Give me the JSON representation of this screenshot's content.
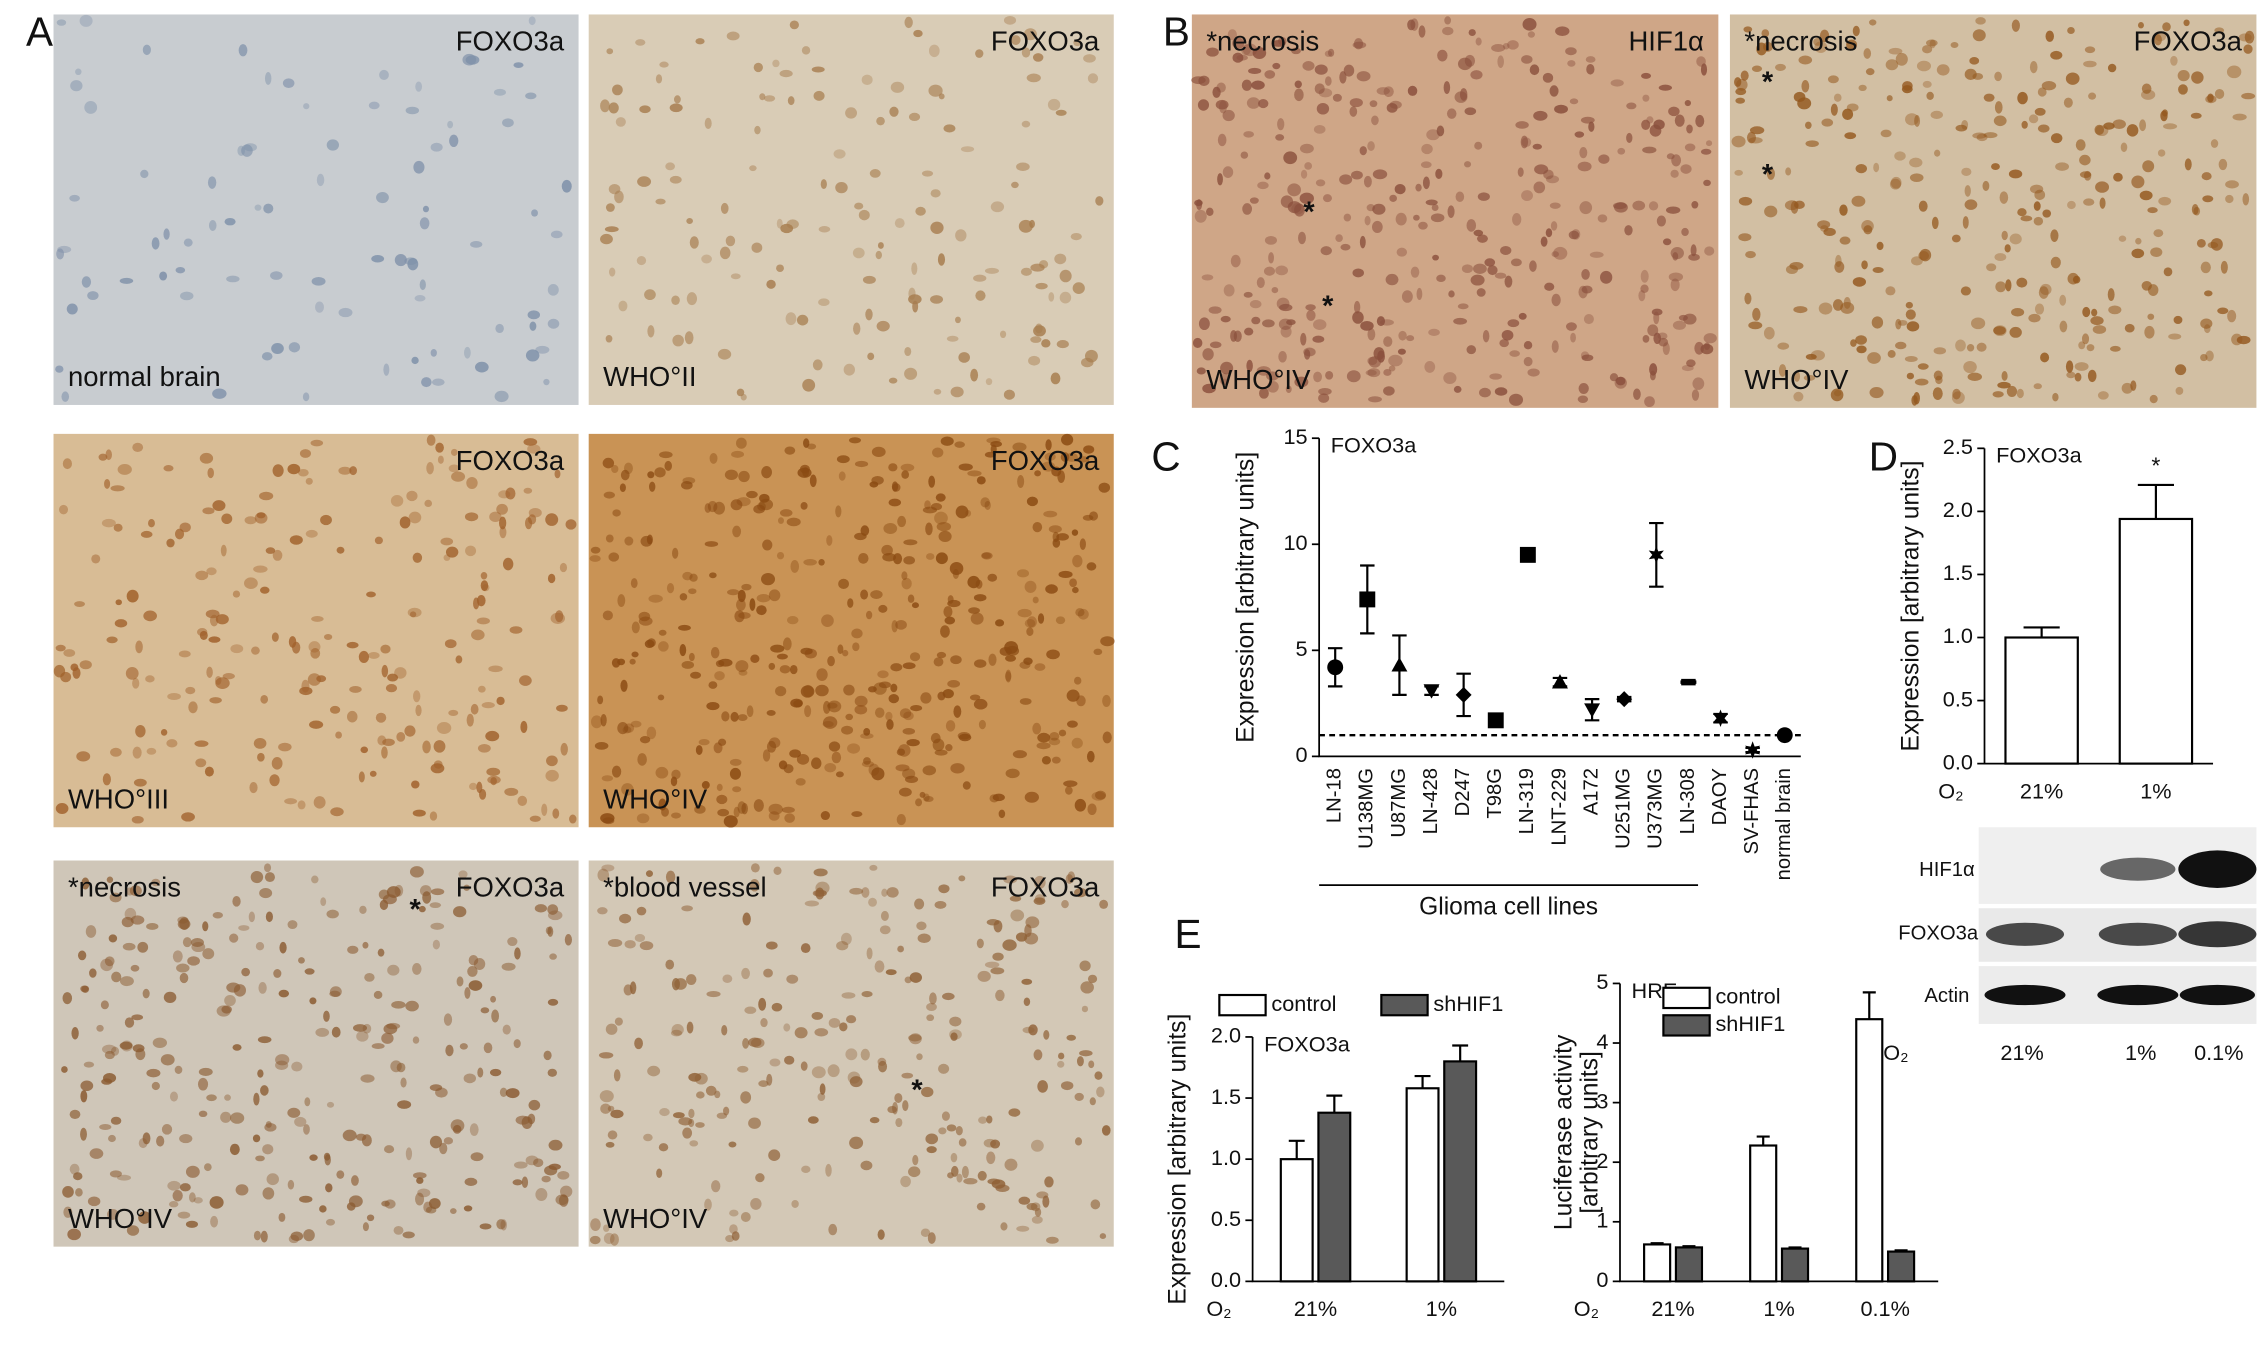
{
  "panel_labels": [
    "A",
    "B",
    "C",
    "D",
    "E"
  ],
  "micrographs": [
    {
      "top_right": "FOXO3a",
      "bottom_left": "normal brain",
      "color": "#c8ccd0",
      "nuclei_color": "#7d8fa8"
    },
    {
      "top_right": "FOXO3a",
      "bottom_left": "WHO°II",
      "color": "#d9ccb6",
      "nuclei_color": "#a77d4f"
    },
    {
      "top_right": "FOXO3a",
      "bottom_left": "WHO°III",
      "color": "#d8bc95",
      "nuclei_color": "#a0602a"
    },
    {
      "top_right": "FOXO3a",
      "bottom_left": "WHO°IV",
      "color": "#c99355",
      "nuclei_color": "#8a4a12"
    },
    {
      "top_left": "*necrosis",
      "top_right": "FOXO3a",
      "bottom_left": "WHO°IV",
      "markers": [
        "*"
      ],
      "color": "#cfc6b8",
      "nuclei_color": "#8a5a30"
    },
    {
      "top_left": "*blood vessel",
      "top_right": "FOXO3a",
      "bottom_left": "WHO°IV",
      "markers": [
        "*"
      ],
      "color": "#d3c8b6",
      "nuclei_color": "#8f6035"
    },
    {
      "top_left": "*necrosis",
      "top_right": "HIF1α",
      "bottom_left": "WHO°IV",
      "markers": [
        "*",
        "*"
      ],
      "color": "#cfa687",
      "nuclei_color": "#8a4f3c"
    },
    {
      "top_left": "*necrosis",
      "top_right": "FOXO3a",
      "bottom_left": "WHO°IV",
      "markers": [
        "*",
        "*"
      ],
      "color": "#d2bfa3",
      "nuclei_color": "#94581e"
    }
  ],
  "blot": {
    "rows": [
      "HIF1α",
      "FOXO3a",
      "Actin"
    ],
    "x_prefix": "O₂",
    "lanes": [
      "21%",
      "1%",
      "0.1%"
    ]
  },
  "chart_data": [
    {
      "type": "dot",
      "title": "FOXO3a",
      "y_label": "Expression [arbitrary units]",
      "group_label": "Glioma cell lines",
      "categories": [
        "LN-18",
        "U138MG",
        "U87MG",
        "LN-428",
        "D247",
        "T98G",
        "LN-319",
        "LNT-229",
        "A172",
        "U251MG",
        "U373MG",
        "LN-308",
        "DAOY",
        "SV-FHAS",
        "normal brain"
      ],
      "values": [
        4.2,
        7.4,
        4.3,
        3.1,
        2.9,
        1.7,
        9.5,
        3.5,
        2.2,
        2.7,
        9.5,
        3.5,
        1.8,
        0.3,
        1.0
      ],
      "errors": [
        0.9,
        1.6,
        1.4,
        0.2,
        1.0,
        0.2,
        0.2,
        0.2,
        0.5,
        0.1,
        1.5,
        0.1,
        0.2,
        0.1,
        0
      ],
      "markers": [
        "circle",
        "square",
        "triangle-up",
        "triangle-down",
        "diamond",
        "square",
        "square",
        "triangle-up",
        "triangle-down",
        "diamond",
        "star",
        "dash",
        "star",
        "star",
        "circle"
      ],
      "color": "#000000",
      "reference_line": 1,
      "ylim": [
        0,
        15
      ],
      "yticks": [
        0,
        5,
        10,
        15
      ]
    },
    {
      "type": "bar",
      "title": "FOXO3a",
      "y_label": "Expression [arbitrary units]",
      "x_prefix": "O₂",
      "categories": [
        "21%",
        "1%"
      ],
      "series": [
        {
          "color": "#ffffff",
          "values": [
            1.0,
            1.94
          ],
          "errors": [
            0.08,
            0.27
          ]
        }
      ],
      "annotations": [
        {
          "text": "*",
          "x": "1%"
        }
      ],
      "ylim": [
        0,
        2.5
      ],
      "yticks": [
        {
          "value": 0,
          "label": "0.0"
        },
        0.5,
        {
          "value": 1,
          "label": "1.0"
        },
        1.5,
        {
          "value": 2,
          "label": "2.0"
        },
        2.5
      ]
    },
    {
      "type": "bar",
      "title": "FOXO3a",
      "y_label": "Expression [arbitrary units]",
      "x_prefix": "O₂",
      "categories": [
        "21%",
        "1%"
      ],
      "series": [
        {
          "name": "control",
          "color": "#ffffff",
          "values": [
            1.0,
            1.58
          ],
          "errors": [
            0.15,
            0.1
          ]
        },
        {
          "name": "shHIF1",
          "color": "#595959",
          "values": [
            1.38,
            1.8
          ],
          "errors": [
            0.14,
            0.13
          ]
        }
      ],
      "ylim": [
        0,
        2
      ],
      "yticks": [
        {
          "value": 0,
          "label": "0.0"
        },
        0.5,
        {
          "value": 1,
          "label": "1.0"
        },
        1.5,
        {
          "value": 2,
          "label": "2.0"
        }
      ]
    },
    {
      "type": "bar",
      "title": "HRE",
      "y_label": [
        "Luciferase activity",
        "[arbitrary units]"
      ],
      "x_prefix": "O₂",
      "categories": [
        "21%",
        "1%",
        "0.1%"
      ],
      "series": [
        {
          "name": "control",
          "color": "#ffffff",
          "values": [
            0.62,
            2.28,
            4.4
          ],
          "errors": [
            0.02,
            0.15,
            0.45
          ]
        },
        {
          "name": "shHIF1",
          "color": "#595959",
          "values": [
            0.57,
            0.55,
            0.5
          ],
          "errors": [
            0.02,
            0.02,
            0.02
          ]
        }
      ],
      "ylim": [
        0,
        5
      ],
      "yticks": [
        0,
        1,
        2,
        3,
        4,
        5
      ]
    }
  ]
}
